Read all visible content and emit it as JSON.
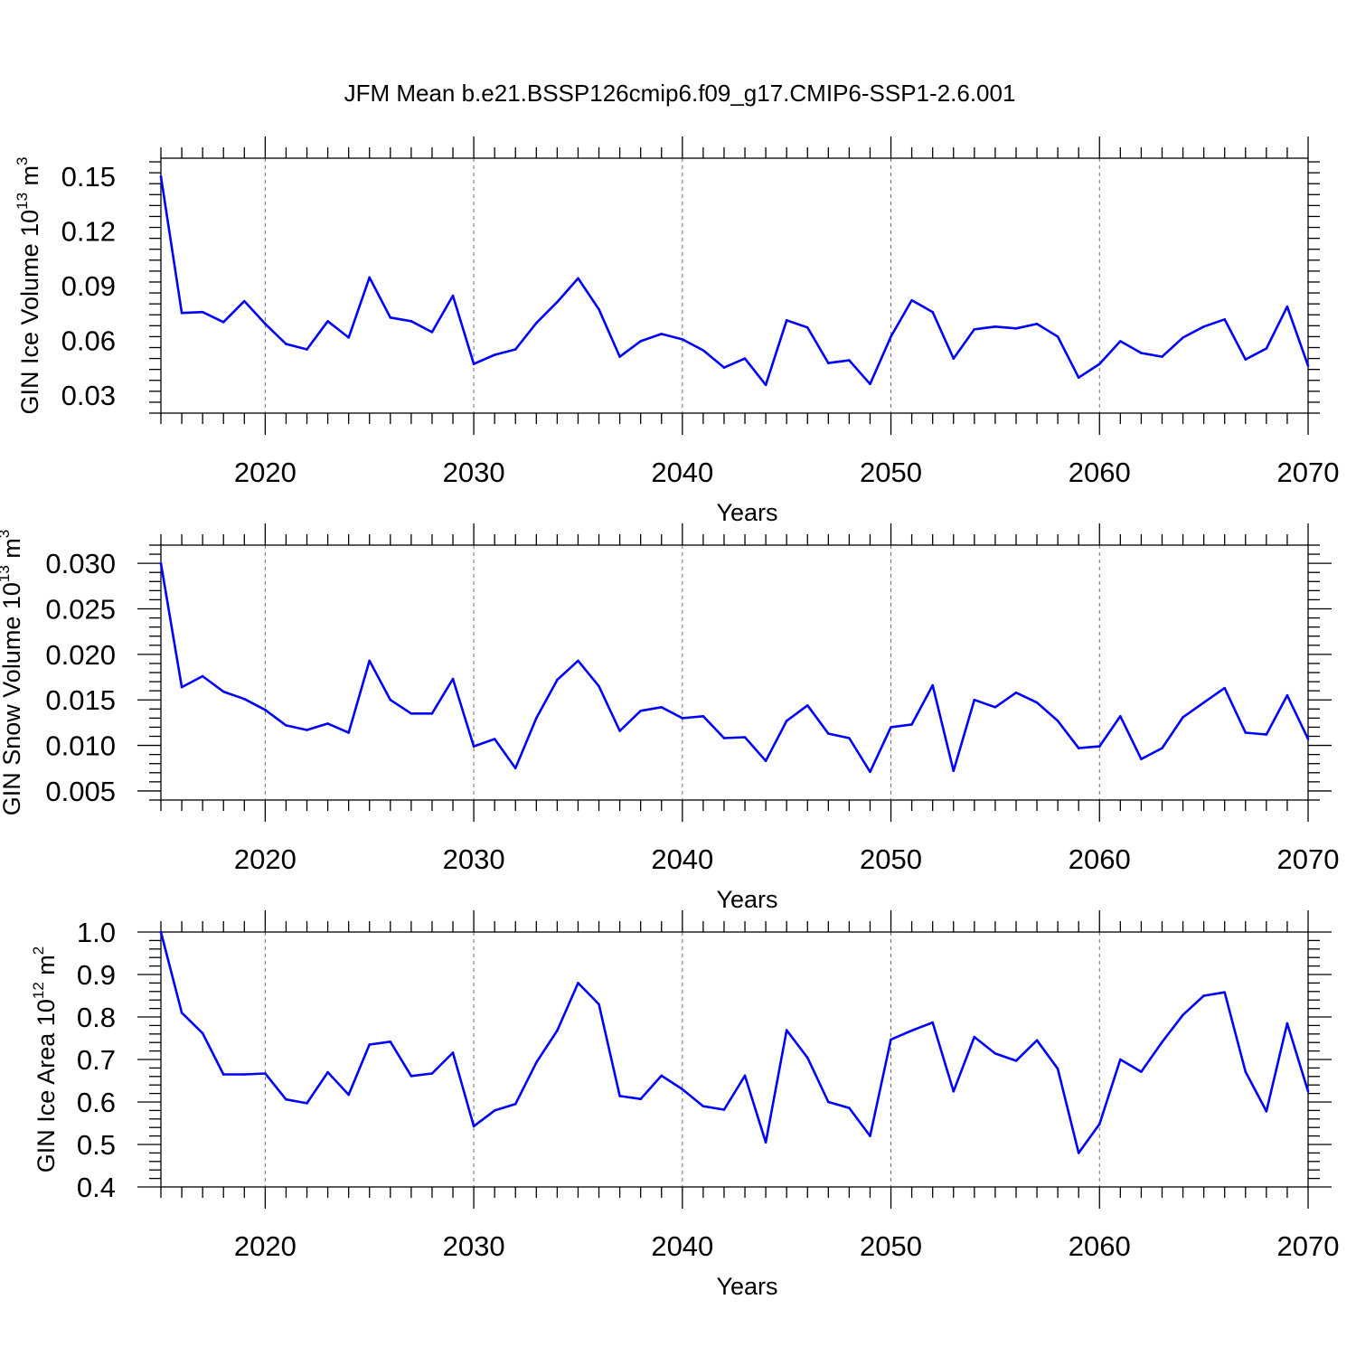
{
  "figure": {
    "title": "JFM Mean b.e21.BSSP126cmip6.f09_g17.CMIP6-SSP1-2.6.001"
  },
  "colors": {
    "series": "#0000ff",
    "axes": "#000000",
    "grid": "#6e6e6e"
  },
  "chart_data": [
    {
      "type": "line",
      "ylabel_main": "GIN Ice Volume 10",
      "ylabel_exp": "13",
      "ylabel_unit": " m",
      "ylabel_unit_exp": "3",
      "xlabel": "Years",
      "xlim": [
        2015,
        2070
      ],
      "ylim": [
        0.02,
        0.16
      ],
      "xticks": [
        "2020",
        "2030",
        "2040",
        "2050",
        "2060",
        "2070"
      ],
      "yticks": [
        "0.03",
        "0.06",
        "0.09",
        "0.12",
        "0.15"
      ],
      "grid": "vertical dashed at major x ticks",
      "x": [
        2015,
        2016,
        2017,
        2018,
        2019,
        2020,
        2021,
        2022,
        2023,
        2024,
        2025,
        2026,
        2027,
        2028,
        2029,
        2030,
        2031,
        2032,
        2033,
        2034,
        2035,
        2036,
        2037,
        2038,
        2039,
        2040,
        2041,
        2042,
        2043,
        2044,
        2045,
        2046,
        2047,
        2048,
        2049,
        2050,
        2051,
        2052,
        2053,
        2054,
        2055,
        2056,
        2057,
        2058,
        2059,
        2060,
        2061,
        2062,
        2063,
        2064,
        2065,
        2066,
        2067,
        2068,
        2069,
        2070
      ],
      "y": [
        0.15,
        0.075,
        0.0755,
        0.07,
        0.0815,
        0.069,
        0.058,
        0.055,
        0.0705,
        0.0615,
        0.0945,
        0.0725,
        0.0705,
        0.0645,
        0.0845,
        0.047,
        0.052,
        0.055,
        0.0695,
        0.081,
        0.094,
        0.077,
        0.051,
        0.0595,
        0.0635,
        0.0605,
        0.0545,
        0.045,
        0.05,
        0.0355,
        0.071,
        0.067,
        0.0475,
        0.049,
        0.036,
        0.062,
        0.082,
        0.0755,
        0.05,
        0.066,
        0.0675,
        0.0665,
        0.069,
        0.062,
        0.0395,
        0.047,
        0.0595,
        0.053,
        0.051,
        0.0615,
        0.0675,
        0.0715,
        0.0495,
        0.0555,
        0.0785,
        0.046
      ]
    },
    {
      "type": "line",
      "ylabel_main": "GIN Snow Volume 10",
      "ylabel_exp": "13",
      "ylabel_unit": " m",
      "ylabel_unit_exp": "3",
      "xlabel": "Years",
      "xlim": [
        2015,
        2070
      ],
      "ylim": [
        0.004,
        0.032
      ],
      "xticks": [
        "2020",
        "2030",
        "2040",
        "2050",
        "2060",
        "2070"
      ],
      "yticks": [
        "0.005",
        "0.010",
        "0.015",
        "0.020",
        "0.025",
        "0.030"
      ],
      "grid": "vertical dashed at major x ticks",
      "x": [
        2015,
        2016,
        2017,
        2018,
        2019,
        2020,
        2021,
        2022,
        2023,
        2024,
        2025,
        2026,
        2027,
        2028,
        2029,
        2030,
        2031,
        2032,
        2033,
        2034,
        2035,
        2036,
        2037,
        2038,
        2039,
        2040,
        2041,
        2042,
        2043,
        2044,
        2045,
        2046,
        2047,
        2048,
        2049,
        2050,
        2051,
        2052,
        2053,
        2054,
        2055,
        2056,
        2057,
        2058,
        2059,
        2060,
        2061,
        2062,
        2063,
        2064,
        2065,
        2066,
        2067,
        2068,
        2069,
        2070
      ],
      "y": [
        0.03,
        0.0164,
        0.0176,
        0.0159,
        0.0151,
        0.0139,
        0.0122,
        0.0117,
        0.0124,
        0.0114,
        0.0193,
        0.015,
        0.0135,
        0.0135,
        0.0173,
        0.0099,
        0.0107,
        0.0075,
        0.013,
        0.0172,
        0.0193,
        0.0165,
        0.0116,
        0.0138,
        0.0142,
        0.013,
        0.0132,
        0.0108,
        0.0109,
        0.0083,
        0.0127,
        0.0144,
        0.0113,
        0.0108,
        0.0071,
        0.012,
        0.0123,
        0.0166,
        0.0072,
        0.015,
        0.0142,
        0.0158,
        0.0147,
        0.0127,
        0.0097,
        0.0099,
        0.0132,
        0.0085,
        0.0097,
        0.0131,
        0.0147,
        0.0163,
        0.0114,
        0.0112,
        0.0155,
        0.0107
      ]
    },
    {
      "type": "line",
      "ylabel_main": "GIN Ice Area 10",
      "ylabel_exp": "12",
      "ylabel_unit": " m",
      "ylabel_unit_exp": "2",
      "xlabel": "Years",
      "xlim": [
        2015,
        2070
      ],
      "ylim": [
        0.4,
        1.0
      ],
      "xticks": [
        "2020",
        "2030",
        "2040",
        "2050",
        "2060",
        "2070"
      ],
      "yticks": [
        "0.4",
        "0.5",
        "0.6",
        "0.7",
        "0.8",
        "0.9",
        "1.0"
      ],
      "grid": "vertical dashed at major x ticks",
      "x": [
        2015,
        2016,
        2017,
        2018,
        2019,
        2020,
        2021,
        2022,
        2023,
        2024,
        2025,
        2026,
        2027,
        2028,
        2029,
        2030,
        2031,
        2032,
        2033,
        2034,
        2035,
        2036,
        2037,
        2038,
        2039,
        2040,
        2041,
        2042,
        2043,
        2044,
        2045,
        2046,
        2047,
        2048,
        2049,
        2050,
        2051,
        2052,
        2053,
        2054,
        2055,
        2056,
        2057,
        2058,
        2059,
        2060,
        2061,
        2062,
        2063,
        2064,
        2065,
        2066,
        2067,
        2068,
        2069,
        2070
      ],
      "y": [
        1.0,
        0.81,
        0.762,
        0.665,
        0.665,
        0.667,
        0.606,
        0.597,
        0.67,
        0.617,
        0.735,
        0.742,
        0.661,
        0.667,
        0.716,
        0.543,
        0.58,
        0.595,
        0.693,
        0.768,
        0.88,
        0.83,
        0.614,
        0.607,
        0.662,
        0.63,
        0.59,
        0.582,
        0.662,
        0.505,
        0.769,
        0.704,
        0.6,
        0.586,
        0.52,
        0.747,
        0.768,
        0.787,
        0.625,
        0.753,
        0.714,
        0.697,
        0.745,
        0.678,
        0.48,
        0.548,
        0.7,
        0.671,
        0.741,
        0.805,
        0.85,
        0.858,
        0.671,
        0.578,
        0.785,
        0.625
      ]
    }
  ]
}
